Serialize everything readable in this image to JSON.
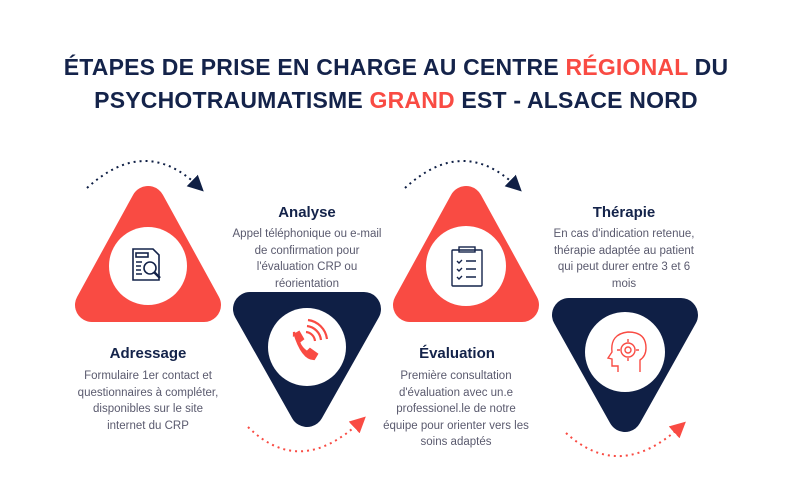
{
  "title": {
    "line1_a": "ÉTAPES  DE PRISE EN CHARGE AU CENTRE ",
    "line1_b": "RÉGIONAL",
    "line1_c": " DU",
    "line2_a": "PSYCHOTRAUMATISME  ",
    "line2_b": "GRAND",
    "line2_c": " EST - ALSACE NORD"
  },
  "colors": {
    "accent": "#f94b43",
    "navy": "#0f1f45",
    "text": "#5a5a6e"
  },
  "steps": [
    {
      "title": "Adressage",
      "icon": "document-search-icon",
      "description": "Formulaire 1er contact et questionnaires à compléter, disponibles sur le site internet du CRP"
    },
    {
      "title": "Analyse",
      "icon": "phone-ringing-icon",
      "description": "Appel téléphonique ou e-mail de confirmation pour l'évaluation CRP ou réorientation"
    },
    {
      "title": "Évaluation",
      "icon": "clipboard-checklist-icon",
      "description": "Première consultation d'évaluation avec un.e professionel.le de notre équipe pour orienter vers les soins adaptés"
    },
    {
      "title": "Thérapie",
      "icon": "head-gear-icon",
      "description": "En cas d'indication retenue, thérapie adaptée au patient qui peut durer entre 3 et 6 mois"
    }
  ]
}
